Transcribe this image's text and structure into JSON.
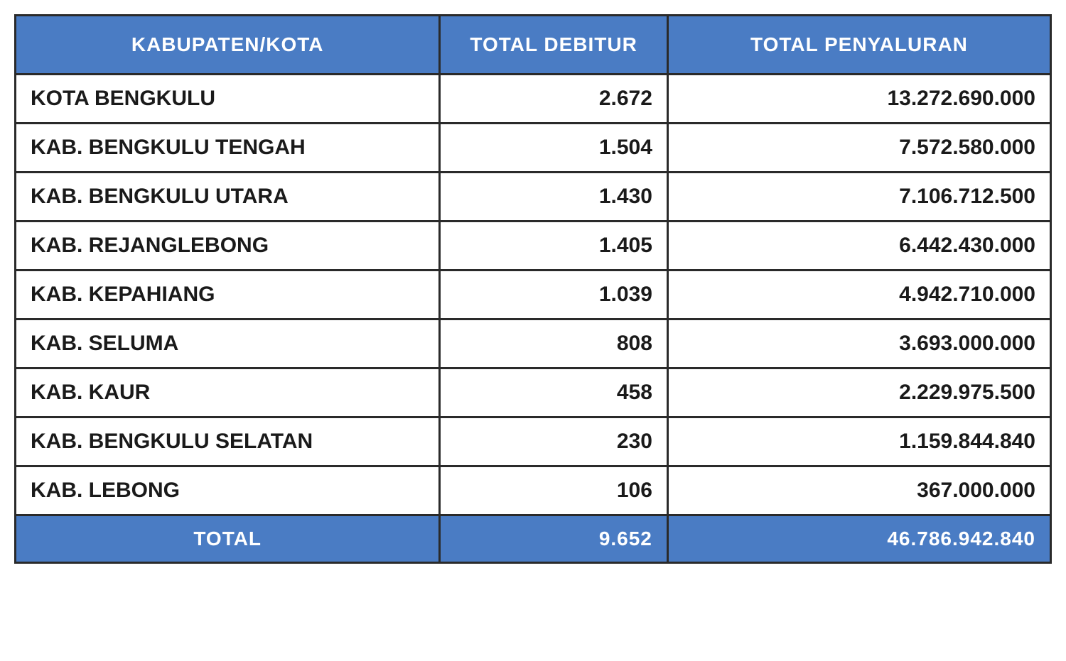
{
  "table": {
    "type": "table",
    "header_bg_color": "#4a7cc4",
    "header_text_color": "#ffffff",
    "body_text_color": "#1a1a1a",
    "border_color": "#2a2a2a",
    "background_color": "#ffffff",
    "border_width": 3,
    "header_font_size": 28,
    "body_font_size": 30,
    "columns": [
      {
        "label": "KABUPATEN/KOTA",
        "align": "left",
        "width_pct": 41
      },
      {
        "label": "TOTAL DEBITUR",
        "align": "right",
        "width_pct": 22
      },
      {
        "label": "TOTAL PENYALURAN",
        "align": "right",
        "width_pct": 37
      }
    ],
    "rows": [
      {
        "region": "KOTA BENGKULU",
        "debitur": "2.672",
        "penyaluran": "13.272.690.000"
      },
      {
        "region": "KAB. BENGKULU TENGAH",
        "debitur": "1.504",
        "penyaluran": "7.572.580.000"
      },
      {
        "region": "KAB. BENGKULU UTARA",
        "debitur": "1.430",
        "penyaluran": "7.106.712.500"
      },
      {
        "region": "KAB. REJANGLEBONG",
        "debitur": "1.405",
        "penyaluran": "6.442.430.000"
      },
      {
        "region": "KAB. KEPAHIANG",
        "debitur": "1.039",
        "penyaluran": "4.942.710.000"
      },
      {
        "region": "KAB. SELUMA",
        "debitur": "808",
        "penyaluran": "3.693.000.000"
      },
      {
        "region": "KAB. KAUR",
        "debitur": "458",
        "penyaluran": "2.229.975.500"
      },
      {
        "region": "KAB. BENGKULU SELATAN",
        "debitur": "230",
        "penyaluran": "1.159.844.840"
      },
      {
        "region": "KAB. LEBONG",
        "debitur": "106",
        "penyaluran": "367.000.000"
      }
    ],
    "total": {
      "label": "TOTAL",
      "debitur": "9.652",
      "penyaluran": "46.786.942.840"
    }
  }
}
